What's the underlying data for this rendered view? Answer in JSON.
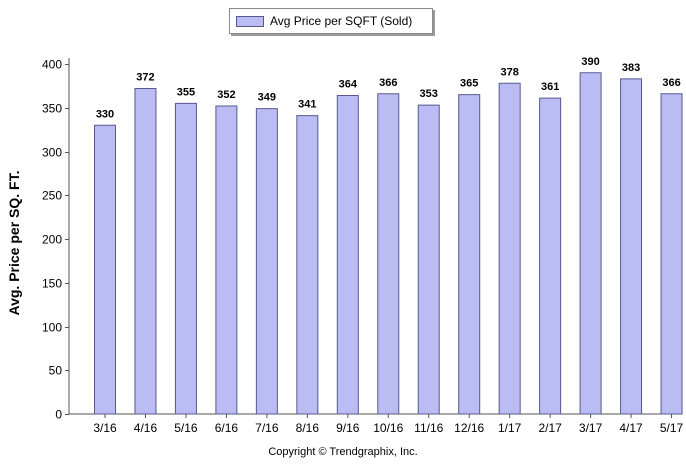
{
  "colors": {
    "bar_fill": "#bcbcf5",
    "bar_stroke": "#555a8a",
    "axis": "#555555",
    "background": "#ffffff"
  },
  "chart_data": {
    "type": "bar",
    "categories": [
      "3/16",
      "4/16",
      "5/16",
      "6/16",
      "7/16",
      "8/16",
      "9/16",
      "10/16",
      "11/16",
      "12/16",
      "1/17",
      "2/17",
      "3/17",
      "4/17",
      "5/17"
    ],
    "series": [
      {
        "name": "Avg Price per SQFT (Sold)",
        "values": [
          330,
          372,
          355,
          352,
          349,
          341,
          364,
          366,
          353,
          365,
          378,
          361,
          390,
          383,
          366
        ]
      }
    ],
    "ylabel": "Avg. Price per SQ. FT.",
    "xlabel": "",
    "ylim": [
      0,
      400
    ],
    "yticks": [
      0,
      50,
      100,
      150,
      200,
      250,
      300,
      350,
      400
    ],
    "data_labels": true,
    "legend_position": "top-center",
    "grid": false
  },
  "footer": "Copyright © Trendgraphix, Inc."
}
